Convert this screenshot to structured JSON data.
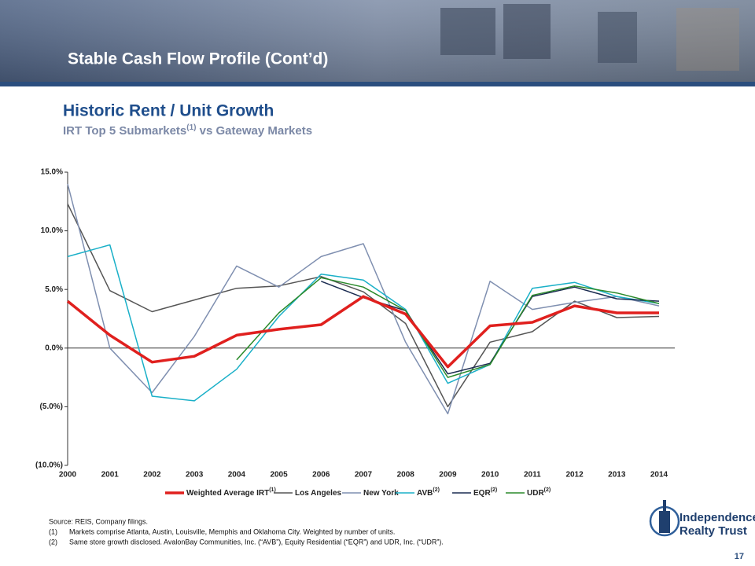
{
  "slide": {
    "title": "Stable Cash Flow Profile  (Cont’d)",
    "page_number": "17",
    "logo": [
      "Independence",
      "Realty Trust"
    ]
  },
  "chart_data": {
    "type": "line",
    "title": "Historic Rent / Unit Growth",
    "subtitle": [
      "IRT Top 5 Submarkets",
      "(1)",
      " vs Gateway Markets"
    ],
    "categories": [
      "2000",
      "2001",
      "2002",
      "2003",
      "2004",
      "2005",
      "2006",
      "2007",
      "2008",
      "2009",
      "2010",
      "2011",
      "2012",
      "2013",
      "2014"
    ],
    "ylim": [
      -10,
      15
    ],
    "yticks": [
      {
        "value": -10,
        "label": "(10.0%)"
      },
      {
        "value": -5,
        "label": "(5.0%)"
      },
      {
        "value": 0,
        "label": "0.0%"
      },
      {
        "value": 5,
        "label": "5.0%"
      },
      {
        "value": 10,
        "label": "10.0%"
      },
      {
        "value": 15,
        "label": "15.0%"
      }
    ],
    "series": [
      {
        "name": "Weighted Average IRT",
        "note": "(1)",
        "color": "#e0201e",
        "width": 3.5,
        "values": [
          4.0,
          1.1,
          -1.2,
          -0.7,
          1.1,
          1.6,
          2.0,
          4.4,
          2.9,
          -1.6,
          1.9,
          2.2,
          3.6,
          3.0,
          3.0
        ]
      },
      {
        "name": "Los Angeles",
        "color": "#555555",
        "width": 1.5,
        "values": [
          12.3,
          4.9,
          3.1,
          4.1,
          5.1,
          5.3,
          6.1,
          4.8,
          2.1,
          -5.0,
          0.5,
          1.4,
          4.0,
          2.6,
          2.7
        ]
      },
      {
        "name": "New York",
        "color": "#7f8fb0",
        "width": 1.5,
        "values": [
          14.0,
          0.0,
          -3.8,
          1.0,
          7.0,
          5.2,
          7.8,
          8.9,
          0.5,
          -5.6,
          5.7,
          3.3,
          3.9,
          4.4,
          3.6
        ]
      },
      {
        "name": "AVB",
        "note": "(2)",
        "color": "#1ab0c8",
        "width": 1.5,
        "values": [
          7.8,
          8.8,
          -4.1,
          -4.5,
          -1.8,
          2.7,
          6.3,
          5.8,
          3.3,
          -3.0,
          -1.4,
          5.1,
          5.6,
          4.4,
          3.8
        ]
      },
      {
        "name": "EQR",
        "note": "(2)",
        "color": "#1a2b50",
        "width": 1.5,
        "values": [
          null,
          null,
          null,
          null,
          null,
          null,
          5.7,
          4.3,
          3.2,
          -2.2,
          -1.3,
          4.4,
          5.2,
          4.2,
          4.0
        ]
      },
      {
        "name": "UDR",
        "note": "(2)",
        "color": "#2a8a2a",
        "width": 1.5,
        "values": [
          null,
          null,
          null,
          null,
          -1.0,
          3.0,
          6.0,
          5.2,
          3.2,
          -2.5,
          -1.4,
          4.5,
          5.3,
          4.7,
          3.8
        ]
      }
    ]
  },
  "footnotes": {
    "source": "Source: REIS, Company filings.",
    "items": [
      {
        "mark": "(1)",
        "text": "Markets comprise Atlanta, Austin, Louisville, Memphis  and Oklahoma City.  Weighted by number of units."
      },
      {
        "mark": "(2)",
        "text": "Same store growth disclosed. AvalonBay Communities, Inc. (“AVB”), Equity Residential  (“EQR”) and UDR, Inc. (“UDR”)."
      }
    ]
  }
}
